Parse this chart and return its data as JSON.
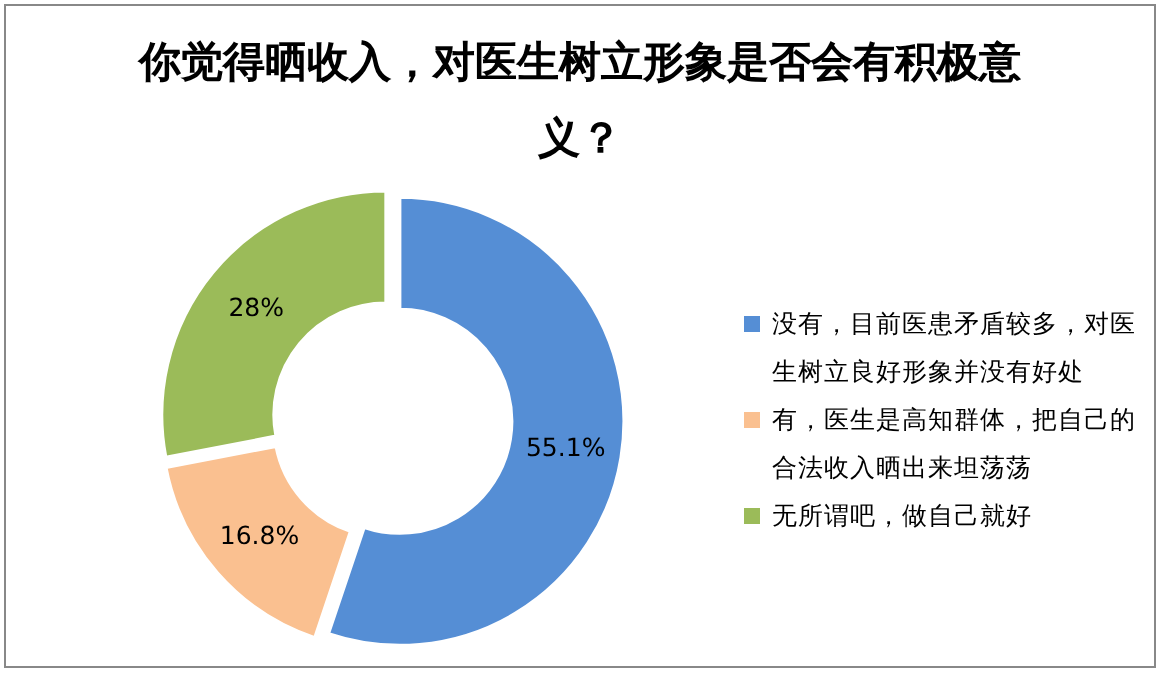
{
  "chart_data": {
    "type": "donut",
    "title": "你觉得晒收入，对医生树立形象是否会有积极意义？",
    "categories": [
      "没有，目前医患矛盾较多，对医生树立良好形象并没有好处",
      "有，医生是高知群体，把自己的合法收入晒出来坦荡荡",
      "无所谓吧，做自己就好"
    ],
    "values": [
      55.1,
      16.8,
      28
    ],
    "colors": [
      "#558ed5",
      "#fac090",
      "#9bbb59"
    ],
    "value_labels": [
      "55.1%",
      "16.8%",
      "28%"
    ],
    "legend": "right"
  }
}
